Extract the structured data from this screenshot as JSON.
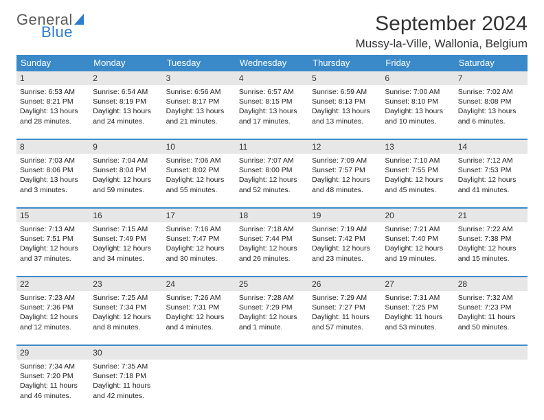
{
  "logo": {
    "line1": "General",
    "line2": "Blue"
  },
  "title": "September 2024",
  "location": "Mussy-la-Ville, Wallonia, Belgium",
  "colors": {
    "header_bg": "#3a8ac9",
    "header_text": "#ffffff",
    "daynum_bg": "#e7e7e7",
    "border": "#3a8ac9",
    "title_color": "#333333",
    "logo_gray": "#5a5a5a",
    "logo_blue": "#2d7dd2"
  },
  "day_headers": [
    "Sunday",
    "Monday",
    "Tuesday",
    "Wednesday",
    "Thursday",
    "Friday",
    "Saturday"
  ],
  "weeks": [
    [
      {
        "n": "1",
        "sr": "Sunrise: 6:53 AM",
        "ss": "Sunset: 8:21 PM",
        "d1": "Daylight: 13 hours",
        "d2": "and 28 minutes."
      },
      {
        "n": "2",
        "sr": "Sunrise: 6:54 AM",
        "ss": "Sunset: 8:19 PM",
        "d1": "Daylight: 13 hours",
        "d2": "and 24 minutes."
      },
      {
        "n": "3",
        "sr": "Sunrise: 6:56 AM",
        "ss": "Sunset: 8:17 PM",
        "d1": "Daylight: 13 hours",
        "d2": "and 21 minutes."
      },
      {
        "n": "4",
        "sr": "Sunrise: 6:57 AM",
        "ss": "Sunset: 8:15 PM",
        "d1": "Daylight: 13 hours",
        "d2": "and 17 minutes."
      },
      {
        "n": "5",
        "sr": "Sunrise: 6:59 AM",
        "ss": "Sunset: 8:13 PM",
        "d1": "Daylight: 13 hours",
        "d2": "and 13 minutes."
      },
      {
        "n": "6",
        "sr": "Sunrise: 7:00 AM",
        "ss": "Sunset: 8:10 PM",
        "d1": "Daylight: 13 hours",
        "d2": "and 10 minutes."
      },
      {
        "n": "7",
        "sr": "Sunrise: 7:02 AM",
        "ss": "Sunset: 8:08 PM",
        "d1": "Daylight: 13 hours",
        "d2": "and 6 minutes."
      }
    ],
    [
      {
        "n": "8",
        "sr": "Sunrise: 7:03 AM",
        "ss": "Sunset: 8:06 PM",
        "d1": "Daylight: 13 hours",
        "d2": "and 3 minutes."
      },
      {
        "n": "9",
        "sr": "Sunrise: 7:04 AM",
        "ss": "Sunset: 8:04 PM",
        "d1": "Daylight: 12 hours",
        "d2": "and 59 minutes."
      },
      {
        "n": "10",
        "sr": "Sunrise: 7:06 AM",
        "ss": "Sunset: 8:02 PM",
        "d1": "Daylight: 12 hours",
        "d2": "and 55 minutes."
      },
      {
        "n": "11",
        "sr": "Sunrise: 7:07 AM",
        "ss": "Sunset: 8:00 PM",
        "d1": "Daylight: 12 hours",
        "d2": "and 52 minutes."
      },
      {
        "n": "12",
        "sr": "Sunrise: 7:09 AM",
        "ss": "Sunset: 7:57 PM",
        "d1": "Daylight: 12 hours",
        "d2": "and 48 minutes."
      },
      {
        "n": "13",
        "sr": "Sunrise: 7:10 AM",
        "ss": "Sunset: 7:55 PM",
        "d1": "Daylight: 12 hours",
        "d2": "and 45 minutes."
      },
      {
        "n": "14",
        "sr": "Sunrise: 7:12 AM",
        "ss": "Sunset: 7:53 PM",
        "d1": "Daylight: 12 hours",
        "d2": "and 41 minutes."
      }
    ],
    [
      {
        "n": "15",
        "sr": "Sunrise: 7:13 AM",
        "ss": "Sunset: 7:51 PM",
        "d1": "Daylight: 12 hours",
        "d2": "and 37 minutes."
      },
      {
        "n": "16",
        "sr": "Sunrise: 7:15 AM",
        "ss": "Sunset: 7:49 PM",
        "d1": "Daylight: 12 hours",
        "d2": "and 34 minutes."
      },
      {
        "n": "17",
        "sr": "Sunrise: 7:16 AM",
        "ss": "Sunset: 7:47 PM",
        "d1": "Daylight: 12 hours",
        "d2": "and 30 minutes."
      },
      {
        "n": "18",
        "sr": "Sunrise: 7:18 AM",
        "ss": "Sunset: 7:44 PM",
        "d1": "Daylight: 12 hours",
        "d2": "and 26 minutes."
      },
      {
        "n": "19",
        "sr": "Sunrise: 7:19 AM",
        "ss": "Sunset: 7:42 PM",
        "d1": "Daylight: 12 hours",
        "d2": "and 23 minutes."
      },
      {
        "n": "20",
        "sr": "Sunrise: 7:21 AM",
        "ss": "Sunset: 7:40 PM",
        "d1": "Daylight: 12 hours",
        "d2": "and 19 minutes."
      },
      {
        "n": "21",
        "sr": "Sunrise: 7:22 AM",
        "ss": "Sunset: 7:38 PM",
        "d1": "Daylight: 12 hours",
        "d2": "and 15 minutes."
      }
    ],
    [
      {
        "n": "22",
        "sr": "Sunrise: 7:23 AM",
        "ss": "Sunset: 7:36 PM",
        "d1": "Daylight: 12 hours",
        "d2": "and 12 minutes."
      },
      {
        "n": "23",
        "sr": "Sunrise: 7:25 AM",
        "ss": "Sunset: 7:34 PM",
        "d1": "Daylight: 12 hours",
        "d2": "and 8 minutes."
      },
      {
        "n": "24",
        "sr": "Sunrise: 7:26 AM",
        "ss": "Sunset: 7:31 PM",
        "d1": "Daylight: 12 hours",
        "d2": "and 4 minutes."
      },
      {
        "n": "25",
        "sr": "Sunrise: 7:28 AM",
        "ss": "Sunset: 7:29 PM",
        "d1": "Daylight: 12 hours",
        "d2": "and 1 minute."
      },
      {
        "n": "26",
        "sr": "Sunrise: 7:29 AM",
        "ss": "Sunset: 7:27 PM",
        "d1": "Daylight: 11 hours",
        "d2": "and 57 minutes."
      },
      {
        "n": "27",
        "sr": "Sunrise: 7:31 AM",
        "ss": "Sunset: 7:25 PM",
        "d1": "Daylight: 11 hours",
        "d2": "and 53 minutes."
      },
      {
        "n": "28",
        "sr": "Sunrise: 7:32 AM",
        "ss": "Sunset: 7:23 PM",
        "d1": "Daylight: 11 hours",
        "d2": "and 50 minutes."
      }
    ],
    [
      {
        "n": "29",
        "sr": "Sunrise: 7:34 AM",
        "ss": "Sunset: 7:20 PM",
        "d1": "Daylight: 11 hours",
        "d2": "and 46 minutes."
      },
      {
        "n": "30",
        "sr": "Sunrise: 7:35 AM",
        "ss": "Sunset: 7:18 PM",
        "d1": "Daylight: 11 hours",
        "d2": "and 42 minutes."
      },
      {
        "n": "",
        "sr": "",
        "ss": "",
        "d1": "",
        "d2": ""
      },
      {
        "n": "",
        "sr": "",
        "ss": "",
        "d1": "",
        "d2": ""
      },
      {
        "n": "",
        "sr": "",
        "ss": "",
        "d1": "",
        "d2": ""
      },
      {
        "n": "",
        "sr": "",
        "ss": "",
        "d1": "",
        "d2": ""
      },
      {
        "n": "",
        "sr": "",
        "ss": "",
        "d1": "",
        "d2": ""
      }
    ]
  ]
}
